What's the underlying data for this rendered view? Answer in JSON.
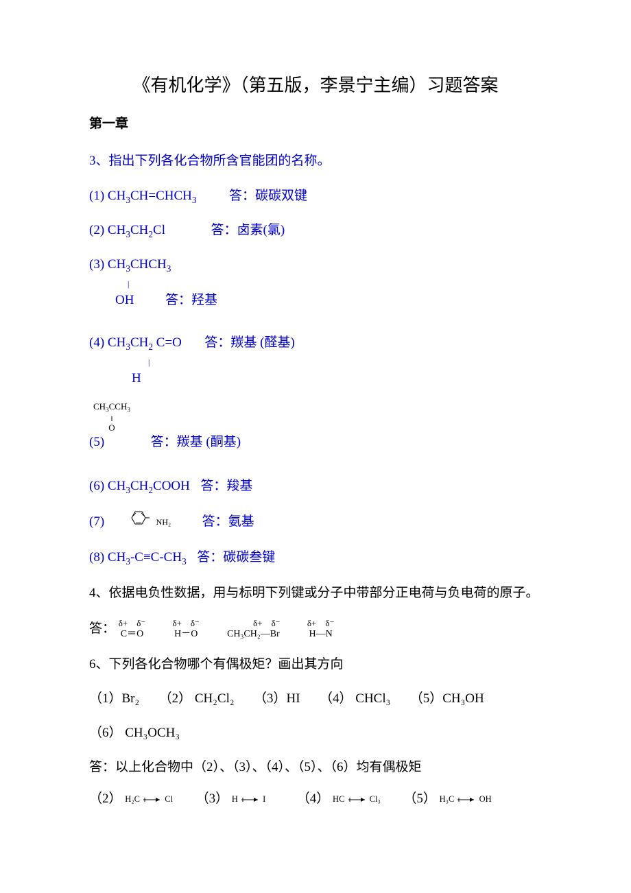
{
  "title": "《有机化学》（第五版，李景宁主编）习题答案",
  "chapter": "第一章",
  "q3": {
    "prompt": "3、指出下列各化合物所含官能团的名称。",
    "items": [
      {
        "num": "(1)",
        "formula_html": "CH<sub>3</sub>CH=CHCH<sub>3</sub>",
        "spacer": "　　",
        "answer": "答：碳碳双键"
      },
      {
        "num": "(2)",
        "formula_html": "CH<sub>3</sub>CH<sub>2</sub>Cl",
        "spacer": "　　　",
        "answer": "答：卤素(氯)"
      }
    ],
    "item3": {
      "num": "(3)",
      "top_html": "CH<sub>3</sub>CHCH<sub>3</sub>",
      "bottom": "OH",
      "answer": "答：羟基"
    },
    "item4": {
      "num": "(4)",
      "top_html": "CH<sub>3</sub>CH<sub>2</sub> C=O",
      "bottom": "H",
      "answer": "答：羰基 (醛基)"
    },
    "item5": {
      "num": "(5)",
      "ketone_top_html": "CH<sub>3</sub>CCH<sub>3</sub>",
      "ketone_mid": "‖",
      "ketone_bot": "O",
      "answer": "答：羰基 (酮基)"
    },
    "item6": {
      "num": "(6)",
      "formula_html": "CH<sub>3</sub>CH<sub>2</sub>COOH",
      "answer": "答：羧基"
    },
    "item7": {
      "num": "(7)",
      "nh2": "NH₂",
      "answer": "答：氨基"
    },
    "item8": {
      "num": "(8)",
      "formula_html": "CH<sub>3</sub>-C≡C-CH<sub>3</sub>",
      "answer": "答：碳碳叁键"
    }
  },
  "q4": {
    "prompt": "4、依据电负性数据，用与标明下列键或分子中带部分正电荷与负电荷的原子。",
    "answer_label": "答：",
    "dipoles": [
      {
        "charges": "δ+　δ⁻",
        "bond": "C＝O"
      },
      {
        "charges": "δ+　δ⁻",
        "bond": "H－O"
      },
      {
        "charges": "　　　δ+　δ⁻",
        "bond": "CH₃CH₂―Br"
      },
      {
        "charges": "δ+　δ⁻",
        "bond": "H―N"
      }
    ]
  },
  "q6": {
    "prompt": "6、下列各化合物哪个有偶极矩？画出其方向",
    "compounds": "（1）Br₂　　（2） CH₂Cl₂　　（3）HI　　（4） CHCl₃　　（5）CH₃OH",
    "compounds2": "（6） CH₃OCH₃",
    "answer1": "答：以上化合物中（2）、（3）、（4）、（5）、（6）均有偶极矩",
    "arrows": [
      {
        "num": "（2）",
        "left": "H₂C",
        "right": "Cl"
      },
      {
        "num": "（3）",
        "left": "H",
        "right": "I"
      },
      {
        "num": "（4）",
        "left": "HC",
        "right": "Cl₃"
      },
      {
        "num": "（5）",
        "left": "H₃C",
        "right": "OH"
      }
    ]
  },
  "colors": {
    "blue": "#0000cc",
    "black": "#000000",
    "background": "#ffffff"
  }
}
